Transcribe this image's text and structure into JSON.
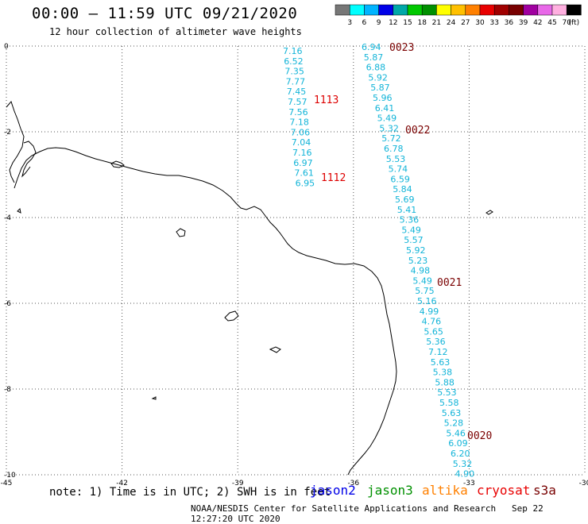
{
  "header": {
    "title": "00:00 – 11:59 UTC 09/21/2020",
    "subtitle": "12 hour collection of altimeter wave heights"
  },
  "legend": {
    "colors": [
      "#777777",
      "#00ffff",
      "#00b4ff",
      "#0000e8",
      "#00a8a8",
      "#00c800",
      "#009000",
      "#ffff00",
      "#ffc000",
      "#ff8000",
      "#e80000",
      "#a00000",
      "#780000",
      "#a000a0",
      "#e868e8",
      "#ffb0e0",
      "#000000"
    ],
    "labels": [
      "3",
      "6",
      "9",
      "12",
      "15",
      "18",
      "21",
      "24",
      "27",
      "30",
      "33",
      "36",
      "39",
      "42",
      "45",
      "70",
      "(ft)"
    ]
  },
  "axes": {
    "x_ticks": [
      "-45",
      "-42",
      "-39",
      "-36",
      "-33",
      "-30"
    ],
    "y_ticks": [
      "0",
      "-2",
      "-4",
      "-6",
      "-8",
      "-10"
    ],
    "x_range": [
      -45,
      -30
    ],
    "y_range": [
      -10,
      0
    ]
  },
  "tracks": [
    {
      "satellite": "cryosat",
      "values": [
        "7.16",
        "6.52",
        "7.35",
        "7.77",
        "7.45",
        "7.57",
        "7.56",
        "7.18",
        "7.06",
        "7.04",
        "7.16",
        "6.97",
        "7.61",
        "6.95"
      ],
      "time_labels": [
        "1113",
        "1112"
      ]
    },
    {
      "satellite": "s3a",
      "values": [
        "6.94",
        "5.87",
        "6.88",
        "5.92",
        "5.87",
        "5.96",
        "6.41",
        "5.49",
        "5.32",
        "5.72",
        "6.78",
        "5.53",
        "5.74",
        "6.59",
        "5.84",
        "5.69",
        "5.41",
        "5.36",
        "5.49",
        "5.57",
        "5.92",
        "5.23",
        "4.98",
        "5.49",
        "5.75",
        "5.16",
        "4.99",
        "4.76",
        "5.65",
        "5.36",
        "7.12",
        "5.63",
        "5.38",
        "5.88",
        "5.53",
        "5.58",
        "5.63",
        "5.28",
        "5.46",
        "6.09",
        "6.20",
        "5.32",
        "4.90"
      ],
      "time_labels": [
        "0023",
        "0022",
        "0021",
        "0020"
      ]
    }
  ],
  "note": "note: 1) Time is in UTC; 2) SWH is in feet",
  "satellites": [
    {
      "name": "jason2",
      "color": "#0000e8"
    },
    {
      "name": "jason3",
      "color": "#009000"
    },
    {
      "name": "altika",
      "color": "#ff8000"
    },
    {
      "name": "cryosat",
      "color": "#e80000"
    },
    {
      "name": "s3a",
      "color": "#780000"
    }
  ],
  "footer": {
    "credit": "NOAA/NESDIS Center for Satellite Applications and Research",
    "timestamp": "Sep 22 12:27:20 UTC 2020"
  }
}
